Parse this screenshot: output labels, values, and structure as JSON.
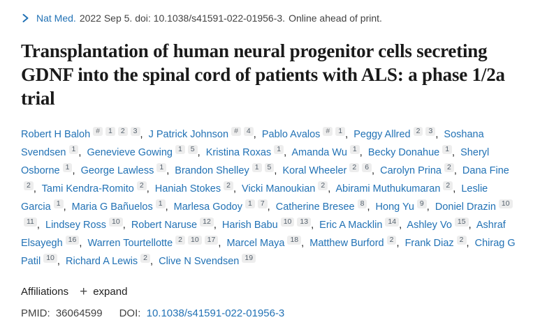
{
  "colors": {
    "link_blue": "#2272b5",
    "text_dark": "#212121",
    "badge_bg": "#ededed"
  },
  "citation": {
    "chevron_icon": "chevron-right-icon",
    "journal": "Nat Med.",
    "rest": "2022 Sep 5. doi: 10.1038/s41591-022-01956-3.",
    "status": "Online ahead of print."
  },
  "title": "Transplantation of human neural progenitor cells secreting GDNF into the spinal cord of patients with ALS: a phase 1/2a trial",
  "authors": [
    {
      "name": "Robert H Baloh",
      "sup": [
        "#",
        "1",
        "2",
        "3"
      ]
    },
    {
      "name": "J Patrick Johnson",
      "sup": [
        "#",
        "4"
      ]
    },
    {
      "name": "Pablo Avalos",
      "sup": [
        "#",
        "1"
      ]
    },
    {
      "name": "Peggy Allred",
      "sup": [
        "2",
        "3"
      ]
    },
    {
      "name": "Soshana Svendsen",
      "sup": [
        "1"
      ]
    },
    {
      "name": "Genevieve Gowing",
      "sup": [
        "1",
        "5"
      ]
    },
    {
      "name": "Kristina Roxas",
      "sup": [
        "1"
      ]
    },
    {
      "name": "Amanda Wu",
      "sup": [
        "1"
      ]
    },
    {
      "name": "Becky Donahue",
      "sup": [
        "1"
      ]
    },
    {
      "name": "Sheryl Osborne",
      "sup": [
        "1"
      ]
    },
    {
      "name": "George Lawless",
      "sup": [
        "1"
      ]
    },
    {
      "name": "Brandon Shelley",
      "sup": [
        "1",
        "5"
      ]
    },
    {
      "name": "Koral Wheeler",
      "sup": [
        "2",
        "6"
      ]
    },
    {
      "name": "Carolyn Prina",
      "sup": [
        "2"
      ]
    },
    {
      "name": "Dana Fine",
      "sup": [
        "2"
      ]
    },
    {
      "name": "Tami Kendra-Romito",
      "sup": [
        "2"
      ]
    },
    {
      "name": "Haniah Stokes",
      "sup": [
        "2"
      ]
    },
    {
      "name": "Vicki Manoukian",
      "sup": [
        "2"
      ]
    },
    {
      "name": "Abirami Muthukumaran",
      "sup": [
        "2"
      ]
    },
    {
      "name": "Leslie Garcia",
      "sup": [
        "1"
      ]
    },
    {
      "name": "Maria G Bañuelos",
      "sup": [
        "1"
      ]
    },
    {
      "name": "Marlesa Godoy",
      "sup": [
        "1",
        "7"
      ]
    },
    {
      "name": "Catherine Bresee",
      "sup": [
        "8"
      ]
    },
    {
      "name": "Hong Yu",
      "sup": [
        "9"
      ]
    },
    {
      "name": "Doniel Drazin",
      "sup": [
        "10",
        "11"
      ]
    },
    {
      "name": "Lindsey Ross",
      "sup": [
        "10"
      ]
    },
    {
      "name": "Robert Naruse",
      "sup": [
        "12"
      ]
    },
    {
      "name": "Harish Babu",
      "sup": [
        "10",
        "13"
      ]
    },
    {
      "name": "Eric A Macklin",
      "sup": [
        "14"
      ]
    },
    {
      "name": "Ashley Vo",
      "sup": [
        "15"
      ]
    },
    {
      "name": "Ashraf Elsayegh",
      "sup": [
        "16"
      ]
    },
    {
      "name": "Warren Tourtellotte",
      "sup": [
        "2",
        "10",
        "17"
      ]
    },
    {
      "name": "Marcel Maya",
      "sup": [
        "18"
      ]
    },
    {
      "name": "Matthew Burford",
      "sup": [
        "2"
      ]
    },
    {
      "name": "Frank Diaz",
      "sup": [
        "2"
      ]
    },
    {
      "name": "Chirag G Patil",
      "sup": [
        "10"
      ]
    },
    {
      "name": "Richard A Lewis",
      "sup": [
        "2"
      ]
    },
    {
      "name": "Clive N Svendsen",
      "sup": [
        "19"
      ]
    }
  ],
  "affiliations": {
    "label": "Affiliations",
    "plus_icon": "+",
    "expand_label": "expand"
  },
  "identifiers": {
    "pmid_label": "PMID:",
    "pmid_value": "36064599",
    "doi_label": "DOI:",
    "doi_link": "10.1038/s41591-022-01956-3"
  }
}
